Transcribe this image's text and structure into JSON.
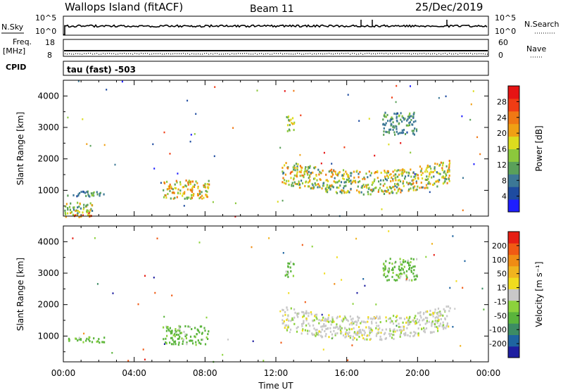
{
  "header": {
    "station": "Wallops Island (fitACF)",
    "beam": "Beam 11",
    "date": "25/Dec/2019"
  },
  "top_panels": {
    "nsky": {
      "label_left": "N.Sky",
      "label_right": "N.Search",
      "tick_top": "10^5",
      "tick_bottom": "10^0"
    },
    "freq": {
      "label_left_1": "Freq.",
      "label_left_2": "[MHz]",
      "tick_left_top": "18",
      "tick_left_bottom": "8",
      "label_right": "Nave",
      "tick_right_top": "60",
      "tick_right_bottom": "0"
    },
    "cpid": {
      "label": "CPID",
      "text": "tau (fast) -503"
    }
  },
  "colors": {
    "power_scale": [
      "#1e1eff",
      "#1e4ba0",
      "#3c7896",
      "#5aa05a",
      "#8cc83c",
      "#dcdc1e",
      "#f0a014",
      "#f07814",
      "#f03c14",
      "#e61414"
    ],
    "velocity_scale": [
      "#1e1ea0",
      "#1e64a0",
      "#3c8c64",
      "#5ab43c",
      "#8cd23c",
      "#c8c8c8",
      "#f0dc1e",
      "#f0b41e",
      "#f08c14",
      "#f05a14",
      "#e61e14"
    ]
  },
  "chart_data": [
    {
      "type": "heatmap",
      "name": "power",
      "ylabel": "Slant Range [km]",
      "ylim": [
        180,
        4500
      ],
      "yticks": [
        "1000",
        "2000",
        "3000",
        "4000"
      ],
      "ytick_values": [
        1000,
        2000,
        3000,
        4000
      ],
      "xlim_hours": [
        0,
        24
      ],
      "colorbar": {
        "title": "Power [dB]",
        "ticks": [
          "4",
          "8",
          "12",
          "16",
          "20",
          "24",
          "28"
        ],
        "range": [
          0,
          32
        ]
      },
      "regions": [
        {
          "t": [
            0.2,
            2.3
          ],
          "r": [
            820,
            1000
          ],
          "v": [
            6,
            13
          ]
        },
        {
          "t": [
            0.0,
            1.6
          ],
          "r": [
            200,
            650
          ],
          "v": [
            8,
            20
          ]
        },
        {
          "t": [
            0.0,
            1.6
          ],
          "r": [
            180,
            260
          ],
          "v": [
            20,
            28
          ]
        },
        {
          "t": [
            5.6,
            8.2
          ],
          "r": [
            750,
            1350
          ],
          "v": [
            10,
            26
          ]
        },
        {
          "t": [
            12.3,
            21.8
          ],
          "r": [
            1050,
            1800
          ],
          "v": [
            8,
            24
          ]
        },
        {
          "t": [
            12.5,
            13.0
          ],
          "r": [
            2900,
            3400
          ],
          "v": [
            12,
            20
          ]
        },
        {
          "t": [
            18.0,
            20.0
          ],
          "r": [
            2800,
            3500
          ],
          "v": [
            6,
            14
          ]
        }
      ]
    },
    {
      "type": "heatmap",
      "name": "velocity",
      "ylabel": "Slant Range [km]",
      "ylim": [
        180,
        4500
      ],
      "yticks": [
        "1000",
        "2000",
        "3000",
        "4000"
      ],
      "ytick_values": [
        1000,
        2000,
        3000,
        4000
      ],
      "xlim_hours": [
        0,
        24
      ],
      "xticks": [
        "00:00",
        "04:00",
        "08:00",
        "12:00",
        "16:00",
        "20:00",
        "00:00"
      ],
      "xlabel": "Time UT",
      "colorbar": {
        "title": "Velocity [m s⁻¹]",
        "ticks": [
          "-200",
          "-100",
          "-50",
          "-15",
          "15",
          "50",
          "100",
          "200"
        ]
      },
      "regions": [
        {
          "t": [
            0.2,
            2.3
          ],
          "r": [
            820,
            1000
          ],
          "v": "green"
        },
        {
          "t": [
            5.6,
            8.2
          ],
          "r": [
            750,
            1350
          ],
          "v": "green"
        },
        {
          "t": [
            12.3,
            21.8
          ],
          "r": [
            1050,
            1800
          ],
          "v": "grey"
        },
        {
          "t": [
            12.5,
            13.0
          ],
          "r": [
            2900,
            3400
          ],
          "v": "green"
        },
        {
          "t": [
            18.0,
            20.0
          ],
          "r": [
            2800,
            3500
          ],
          "v": "green"
        }
      ]
    }
  ]
}
